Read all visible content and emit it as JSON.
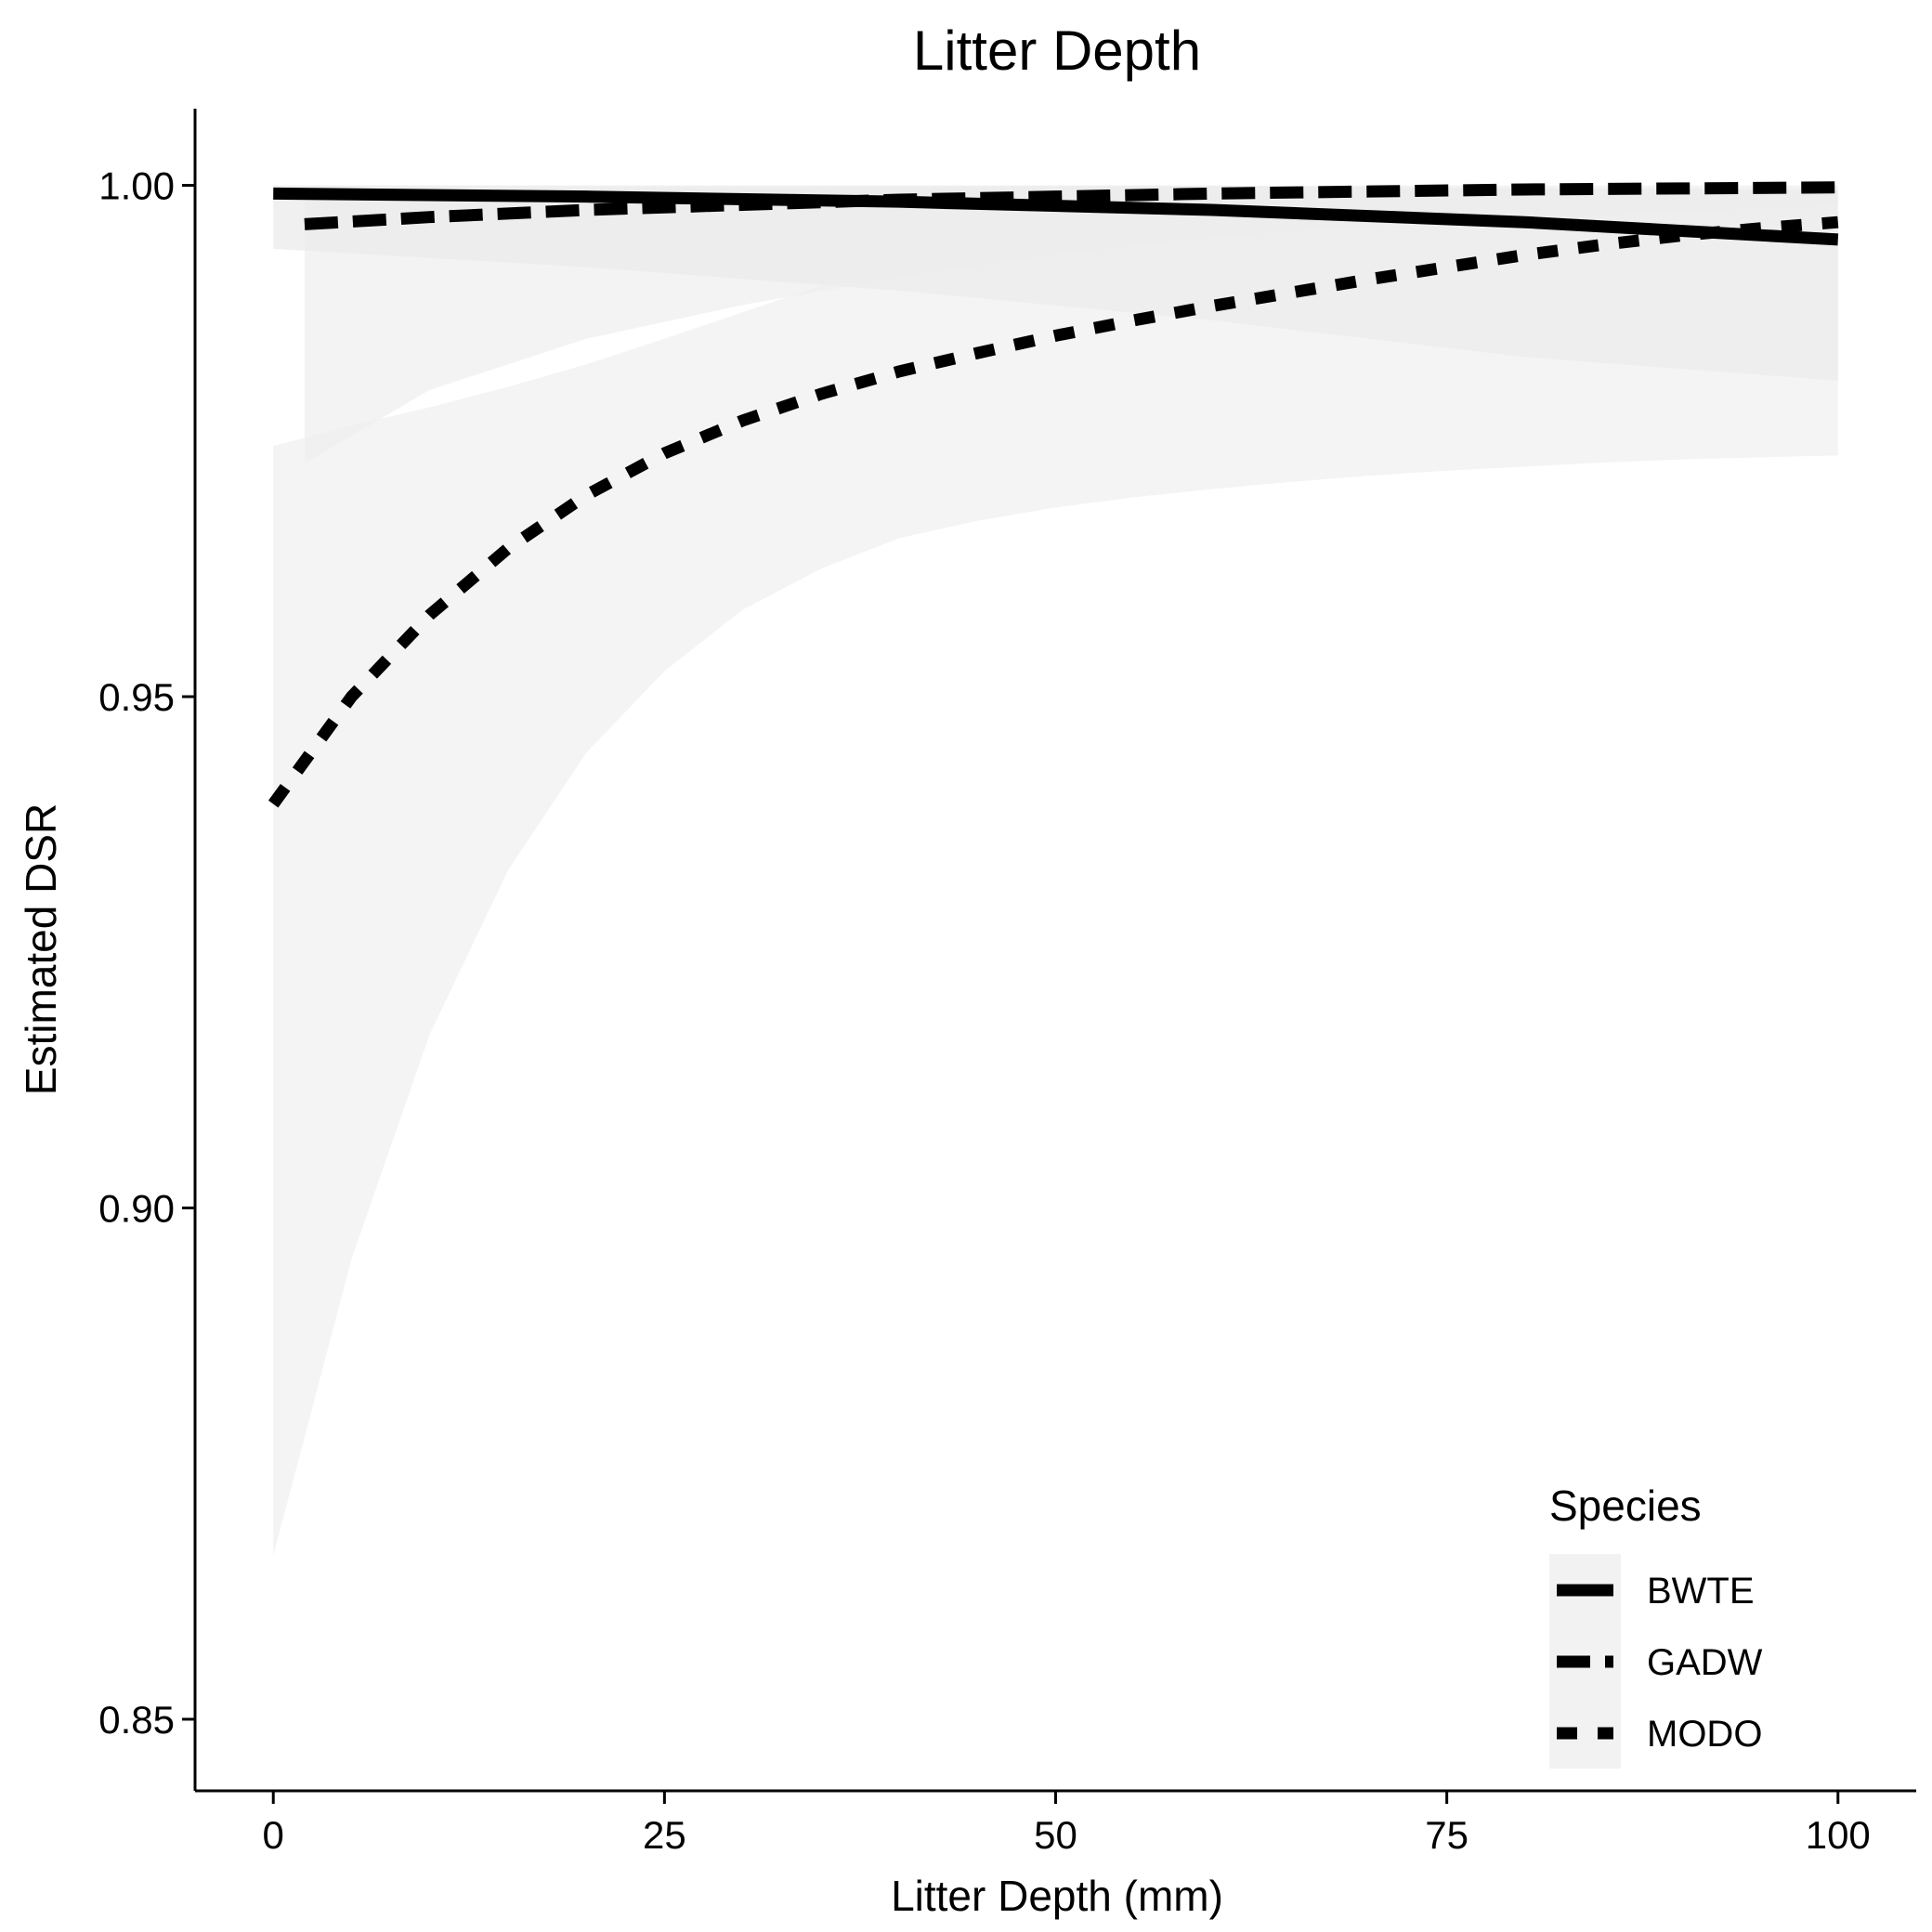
{
  "chart_data": {
    "type": "line",
    "title": "Litter Depth",
    "xlabel": "Litter Depth (mm)",
    "ylabel": "Estimated DSR",
    "xlim": [
      -5,
      105
    ],
    "ylim": [
      0.843,
      1.0075
    ],
    "x_ticks": [
      0,
      25,
      50,
      75,
      100
    ],
    "x_tick_labels": [
      "0",
      "25",
      "50",
      "75",
      "100"
    ],
    "y_ticks": [
      0.85,
      0.9,
      0.95,
      1.0
    ],
    "y_tick_labels": [
      "0.85",
      "0.90",
      "0.95",
      "1.00"
    ],
    "grid": false,
    "legend": {
      "title": "Species",
      "position": "bottom-right"
    },
    "series": [
      {
        "name": "BWTE",
        "style": "solid",
        "x": [
          0,
          20,
          40,
          60,
          80,
          100
        ],
        "y": [
          0.9992,
          0.9989,
          0.9984,
          0.9976,
          0.9964,
          0.9947
        ],
        "lower": [
          0.9938,
          0.992,
          0.9897,
          0.9868,
          0.9832,
          0.9809
        ],
        "upper": [
          1.0,
          1.0,
          1.0,
          1.0,
          0.9997,
          0.9996
        ]
      },
      {
        "name": "GADW",
        "style": "dashed",
        "x": [
          2,
          10,
          20,
          30,
          40,
          50,
          60,
          70,
          80,
          90,
          100
        ],
        "y": [
          0.9962,
          0.9969,
          0.9976,
          0.9981,
          0.9986,
          0.9989,
          0.9992,
          0.9994,
          0.9996,
          0.9997,
          0.9998
        ],
        "lower": [
          0.9728,
          0.98,
          0.985,
          0.9883,
          0.991,
          0.9932,
          0.9949,
          0.996,
          0.9968,
          0.9974,
          0.998
        ],
        "upper": [
          0.9996,
          0.9997,
          0.9998,
          0.9998,
          0.9999,
          0.9999,
          0.9999,
          1.0,
          1.0,
          1.0,
          1.0
        ]
      },
      {
        "name": "MODO",
        "style": "dotted",
        "x": [
          0,
          5,
          10,
          15,
          20,
          25,
          30,
          35,
          40,
          45,
          50,
          55,
          60,
          65,
          70,
          75,
          80,
          85,
          90,
          95,
          100
        ],
        "y": [
          0.9395,
          0.95,
          0.958,
          0.9645,
          0.9697,
          0.9738,
          0.977,
          0.9796,
          0.9818,
          0.9836,
          0.9853,
          0.9868,
          0.9882,
          0.9895,
          0.9908,
          0.992,
          0.9932,
          0.9942,
          0.9951,
          0.9958,
          0.9964
        ],
        "lower": [
          0.866,
          0.895,
          0.917,
          0.933,
          0.9445,
          0.9525,
          0.9585,
          0.9625,
          0.9655,
          0.9672,
          0.9685,
          0.9695,
          0.9703,
          0.971,
          0.9716,
          0.9721,
          0.9725,
          0.9729,
          0.9732,
          0.9734,
          0.9736
        ],
        "upper": [
          0.9745,
          0.9765,
          0.9783,
          0.9803,
          0.9825,
          0.985,
          0.9876,
          0.9902,
          0.9925,
          0.9944,
          0.9958,
          0.9967,
          0.9973,
          0.9977,
          0.9979,
          0.9981,
          0.9982,
          0.9982,
          0.9983,
          0.9983,
          0.9983
        ]
      }
    ]
  }
}
